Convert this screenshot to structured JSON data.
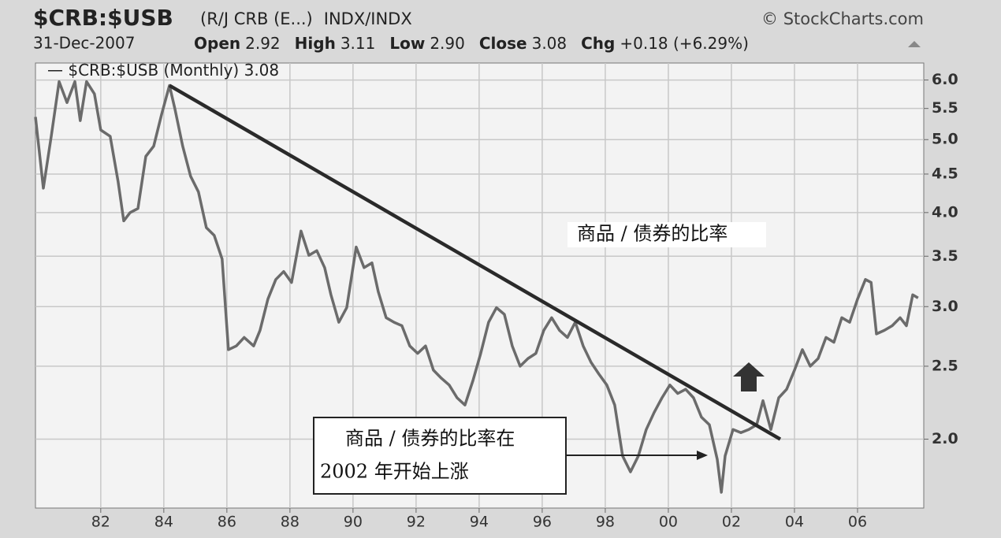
{
  "chart_data": {
    "type": "line",
    "title": "$CRB:$USB",
    "subtitle": "(R/J CRB (E...)",
    "exchange": "INDX/INDX",
    "source": "© StockCharts.com",
    "date": "31-Dec-2007",
    "stats": [
      {
        "label": "Open",
        "value": "2.92"
      },
      {
        "label": "High",
        "value": "3.11"
      },
      {
        "label": "Low",
        "value": "2.90"
      },
      {
        "label": "Close",
        "value": "3.08"
      },
      {
        "label": "Chg",
        "value": "+0.18 (+6.29%)"
      }
    ],
    "log_scale": true,
    "grid": true,
    "xlim": [
      1979.93,
      2008.1
    ],
    "ylim": [
      1.62,
      6.32
    ],
    "xticks": [
      {
        "value": 1982,
        "label": "82"
      },
      {
        "value": 1984,
        "label": "84"
      },
      {
        "value": 1986,
        "label": "86"
      },
      {
        "value": 1988,
        "label": "88"
      },
      {
        "value": 1990,
        "label": "90"
      },
      {
        "value": 1992,
        "label": "92"
      },
      {
        "value": 1994,
        "label": "94"
      },
      {
        "value": 1996,
        "label": "96"
      },
      {
        "value": 1998,
        "label": "98"
      },
      {
        "value": 2000,
        "label": "00"
      },
      {
        "value": 2002,
        "label": "02"
      },
      {
        "value": 2004,
        "label": "04"
      },
      {
        "value": 2006,
        "label": "06"
      }
    ],
    "yticks": [
      {
        "value": 2,
        "label": "2.0"
      },
      2.5,
      {
        "value": 3,
        "label": "3.0"
      },
      3.5,
      {
        "value": 4,
        "label": "4.0"
      },
      4.5,
      {
        "value": 5,
        "label": "5.0"
      },
      5.5,
      {
        "value": 6,
        "label": "6.0"
      }
    ],
    "series": [
      {
        "name": "$CRB:$USB (Monthly)",
        "color": "#6b6b6b",
        "x": [
          1979.93,
          1980.18,
          1980.43,
          1980.68,
          1980.93,
          1981.18,
          1981.35,
          1981.55,
          1981.8,
          1982,
          1982.3,
          1982.55,
          1982.73,
          1982.93,
          1983.18,
          1983.43,
          1983.68,
          1983.93,
          1984.18,
          1984.35,
          1984.6,
          1984.85,
          1985.1,
          1985.35,
          1985.6,
          1985.85,
          1986.05,
          1986.3,
          1986.55,
          1986.85,
          1987.05,
          1987.3,
          1987.55,
          1987.8,
          1988.05,
          1988.35,
          1988.6,
          1988.85,
          1989.1,
          1989.3,
          1989.55,
          1989.8,
          1990.1,
          1990.35,
          1990.6,
          1990.8,
          1991.05,
          1991.3,
          1991.55,
          1991.8,
          1992.05,
          1992.3,
          1992.55,
          1992.8,
          1993.05,
          1993.3,
          1993.55,
          1993.8,
          1994.05,
          1994.3,
          1994.55,
          1994.8,
          1995.05,
          1995.3,
          1995.55,
          1995.8,
          1996.05,
          1996.3,
          1996.55,
          1996.8,
          1997.05,
          1997.3,
          1997.55,
          1997.8,
          1998.05,
          1998.3,
          1998.55,
          1998.8,
          1999.05,
          1999.3,
          1999.55,
          1999.8,
          2000.05,
          2000.3,
          2000.55,
          2000.8,
          2001.05,
          2001.3,
          2001.55,
          2001.68,
          2001.8,
          2002.05,
          2002.3,
          2002.55,
          2002.8,
          2003,
          2003.25,
          2003.5,
          2003.75,
          2004,
          2004.25,
          2004.5,
          2004.75,
          2005,
          2005.25,
          2005.5,
          2005.75,
          2006,
          2006.25,
          2006.43,
          2006.6,
          2006.85,
          2007.1,
          2007.35,
          2007.55,
          2007.75,
          2007.92
        ],
        "values": [
          5.36,
          4.31,
          5.05,
          5.97,
          5.6,
          5.97,
          5.3,
          5.97,
          5.75,
          5.15,
          5.05,
          4.4,
          3.9,
          4.0,
          4.05,
          4.75,
          4.9,
          5.4,
          5.9,
          5.5,
          4.9,
          4.47,
          4.26,
          3.82,
          3.73,
          3.47,
          2.63,
          2.66,
          2.73,
          2.66,
          2.79,
          3.07,
          3.26,
          3.34,
          3.23,
          3.78,
          3.51,
          3.56,
          3.38,
          3.11,
          2.86,
          2.99,
          3.6,
          3.38,
          3.43,
          3.14,
          2.9,
          2.86,
          2.83,
          2.66,
          2.6,
          2.66,
          2.47,
          2.41,
          2.36,
          2.27,
          2.22,
          2.39,
          2.6,
          2.86,
          2.99,
          2.93,
          2.66,
          2.5,
          2.56,
          2.6,
          2.79,
          2.9,
          2.79,
          2.73,
          2.86,
          2.66,
          2.53,
          2.44,
          2.36,
          2.22,
          1.9,
          1.81,
          1.9,
          2.06,
          2.17,
          2.27,
          2.36,
          2.3,
          2.33,
          2.27,
          2.14,
          2.09,
          1.88,
          1.7,
          1.9,
          2.06,
          2.04,
          2.06,
          2.09,
          2.25,
          2.06,
          2.27,
          2.33,
          2.47,
          2.63,
          2.5,
          2.56,
          2.73,
          2.69,
          2.9,
          2.86,
          3.07,
          3.26,
          3.23,
          2.76,
          2.79,
          2.83,
          2.9,
          2.83,
          3.11,
          3.08
        ]
      }
    ],
    "trendline": {
      "x": [
        1984.18,
        2003.55
      ],
      "y": [
        5.9,
        2.0
      ]
    },
    "annotations": [
      "商品 / 债券的比率",
      "商品 / 债券的比率在",
      "2002 年开始上涨"
    ]
  }
}
